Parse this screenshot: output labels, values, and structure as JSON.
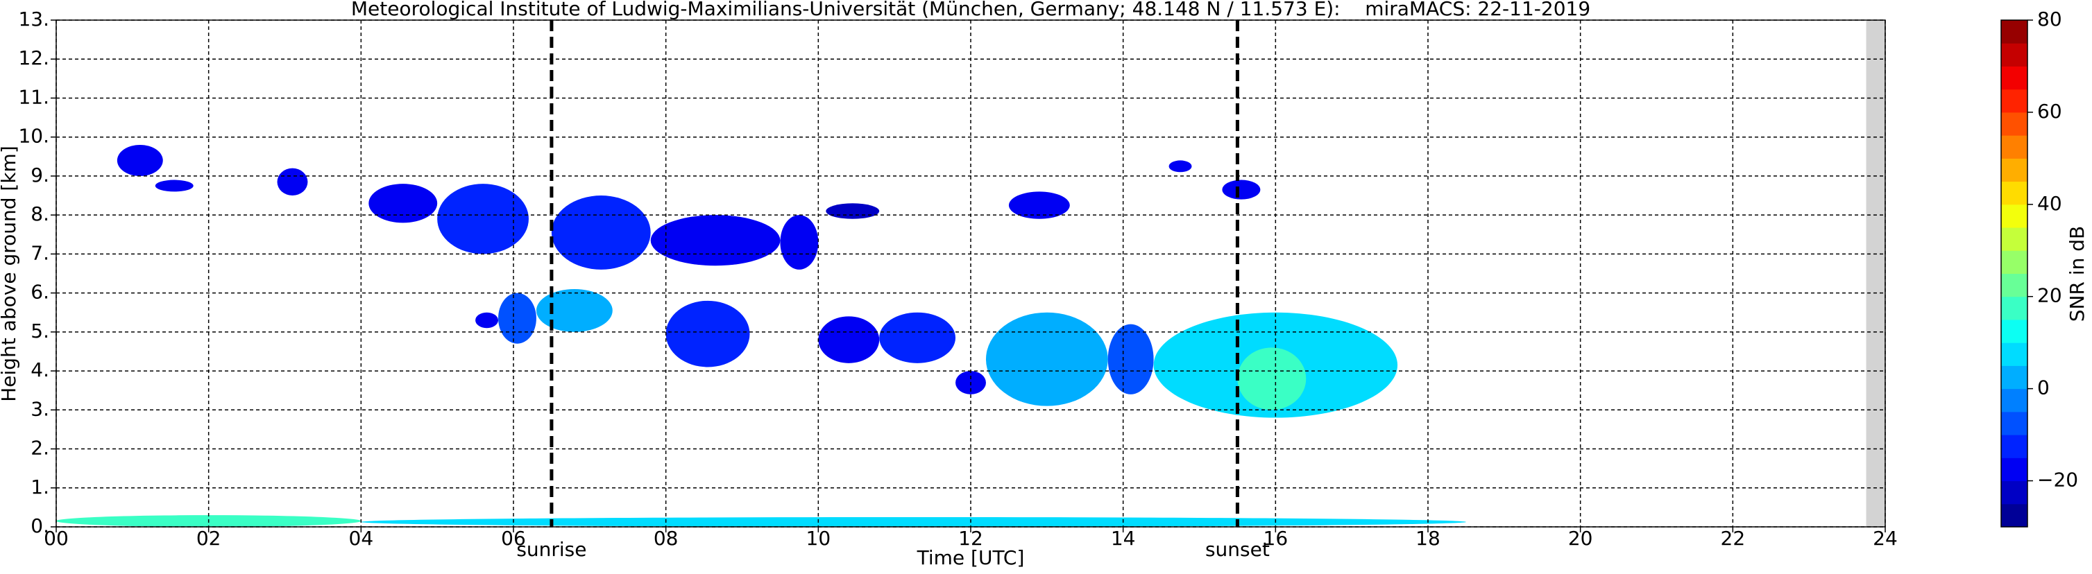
{
  "chart_data": {
    "type": "heatmap",
    "title": "Meteorological Institute of Ludwig-Maximilians-Universität (München, Germany; 48.148 N / 11.573 E):    miraMACS: 22-11-2019",
    "xlabel": "Time [UTC]",
    "ylabel": "Height above ground [km]",
    "clabel": "SNR in dB",
    "xlim": [
      0,
      24
    ],
    "ylim": [
      0,
      13
    ],
    "clim": [
      -30,
      80
    ],
    "colormap": "jet",
    "grid": true,
    "xticks": [
      {
        "value": 0,
        "label": "00"
      },
      {
        "value": 2,
        "label": "02"
      },
      {
        "value": 4,
        "label": "04"
      },
      {
        "value": 6,
        "label": "06"
      },
      {
        "value": 8,
        "label": "08"
      },
      {
        "value": 10,
        "label": "10"
      },
      {
        "value": 12,
        "label": "12"
      },
      {
        "value": 14,
        "label": "14"
      },
      {
        "value": 16,
        "label": "16"
      },
      {
        "value": 18,
        "label": "18"
      },
      {
        "value": 20,
        "label": "20"
      },
      {
        "value": 22,
        "label": "22"
      },
      {
        "value": 24,
        "label": "24"
      }
    ],
    "yticks": [
      {
        "value": 0,
        "label": "0."
      },
      {
        "value": 1,
        "label": "1."
      },
      {
        "value": 2,
        "label": "2."
      },
      {
        "value": 3,
        "label": "3."
      },
      {
        "value": 4,
        "label": "4."
      },
      {
        "value": 5,
        "label": "5."
      },
      {
        "value": 6,
        "label": "6."
      },
      {
        "value": 7,
        "label": "7."
      },
      {
        "value": 8,
        "label": "8."
      },
      {
        "value": 9,
        "label": "9."
      },
      {
        "value": 10,
        "label": "10."
      },
      {
        "value": 11,
        "label": "11."
      },
      {
        "value": 12,
        "label": "12."
      },
      {
        "value": 13,
        "label": "13."
      }
    ],
    "cticks": [
      {
        "value": -20,
        "label": "−20"
      },
      0,
      20,
      40,
      60,
      80
    ],
    "no_data": [
      23.75,
      24
    ],
    "annotations": [
      {
        "x": 6.5,
        "label": "sunrise"
      },
      {
        "x": 15.5,
        "label": "sunset"
      }
    ],
    "cells": [
      {
        "t": [
          0.8,
          1.4
        ],
        "h": [
          9.0,
          9.8
        ],
        "snr": -20
      },
      {
        "t": [
          1.3,
          1.8
        ],
        "h": [
          8.6,
          8.9
        ],
        "snr": -20
      },
      {
        "t": [
          2.9,
          3.3
        ],
        "h": [
          8.5,
          9.2
        ],
        "snr": -20
      },
      {
        "t": [
          4.1,
          5.0
        ],
        "h": [
          7.8,
          8.8
        ],
        "snr": -18
      },
      {
        "t": [
          5.0,
          6.2
        ],
        "h": [
          7.0,
          8.8
        ],
        "snr": -12
      },
      {
        "t": [
          6.5,
          7.8
        ],
        "h": [
          6.6,
          8.5
        ],
        "snr": -12
      },
      {
        "t": [
          7.8,
          9.5
        ],
        "h": [
          6.7,
          8.0
        ],
        "snr": -18
      },
      {
        "t": [
          9.5,
          10.0
        ],
        "h": [
          6.6,
          8.0
        ],
        "snr": -20
      },
      {
        "t": [
          10.1,
          10.8
        ],
        "h": [
          7.9,
          8.3
        ],
        "snr": -22
      },
      {
        "t": [
          12.5,
          13.3
        ],
        "h": [
          7.9,
          8.6
        ],
        "snr": -20
      },
      {
        "t": [
          15.3,
          15.8
        ],
        "h": [
          8.4,
          8.9
        ],
        "snr": -18
      },
      {
        "t": [
          14.6,
          14.9
        ],
        "h": [
          9.1,
          9.4
        ],
        "snr": -20
      },
      {
        "t": [
          5.5,
          5.8
        ],
        "h": [
          5.1,
          5.5
        ],
        "snr": -20
      },
      {
        "t": [
          5.8,
          6.3
        ],
        "h": [
          4.7,
          6.0
        ],
        "snr": -8
      },
      {
        "t": [
          6.3,
          7.3
        ],
        "h": [
          5.0,
          6.1
        ],
        "snr": 0
      },
      {
        "t": [
          8.0,
          9.1
        ],
        "h": [
          4.1,
          5.8
        ],
        "snr": -12
      },
      {
        "t": [
          10.0,
          10.8
        ],
        "h": [
          4.2,
          5.4
        ],
        "snr": -20
      },
      {
        "t": [
          10.8,
          11.8
        ],
        "h": [
          4.2,
          5.5
        ],
        "snr": -15
      },
      {
        "t": [
          11.8,
          12.2
        ],
        "h": [
          3.4,
          4.0
        ],
        "snr": -20
      },
      {
        "t": [
          12.2,
          13.8
        ],
        "h": [
          3.1,
          5.5
        ],
        "snr": 0
      },
      {
        "t": [
          13.8,
          14.4
        ],
        "h": [
          3.4,
          5.2
        ],
        "snr": -10
      },
      {
        "t": [
          14.4,
          17.6
        ],
        "h": [
          2.8,
          5.5
        ],
        "snr": 5
      },
      {
        "t": [
          15.5,
          16.4
        ],
        "h": [
          3.0,
          4.6
        ],
        "snr": 15
      },
      {
        "t": [
          0,
          4
        ],
        "h": [
          0,
          0.3
        ],
        "snr": 18
      },
      {
        "t": [
          4,
          18.5
        ],
        "h": [
          0,
          0.25
        ],
        "snr": 5
      }
    ]
  }
}
